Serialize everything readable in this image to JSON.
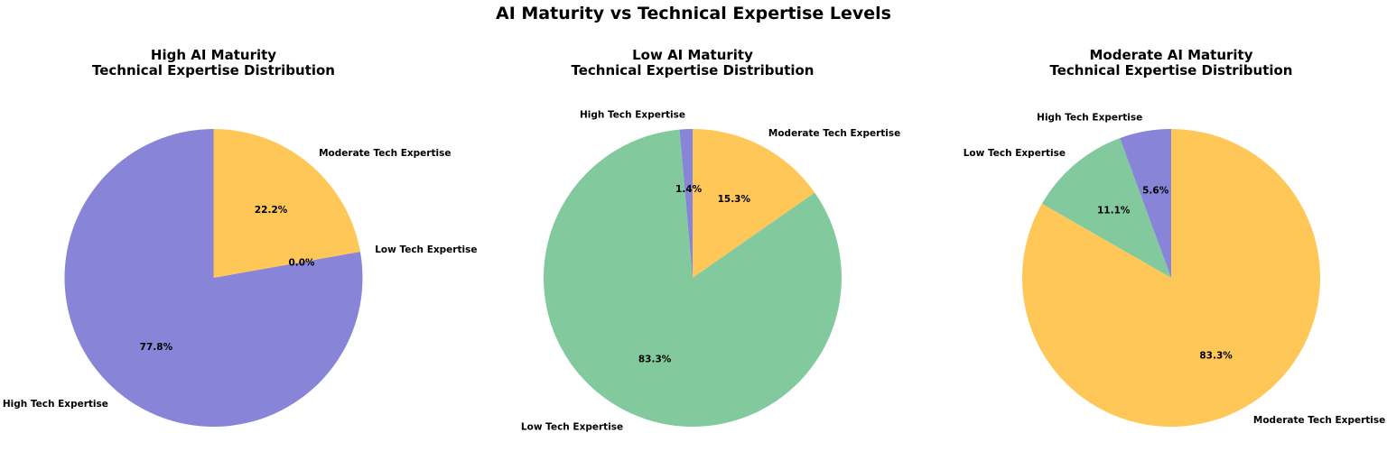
{
  "title": "AI Maturity vs Technical Expertise Levels",
  "colors": {
    "High Tech Expertise": "#8884d8",
    "Moderate Tech Expertise": "#ffc658",
    "Low Tech Expertise": "#82ca9d"
  },
  "chart_data": [
    {
      "type": "pie",
      "title": "High AI Maturity\nTechnical Expertise Distribution",
      "start_angle_deg": 90,
      "direction": "clockwise",
      "slices": [
        {
          "label": "Moderate Tech Expertise",
          "value": 22.2,
          "pct_label": "22.2%"
        },
        {
          "label": "Low Tech Expertise",
          "value": 0.0,
          "pct_label": "0.0%"
        },
        {
          "label": "High Tech Expertise",
          "value": 77.8,
          "pct_label": "77.8%"
        }
      ]
    },
    {
      "type": "pie",
      "title": "Low AI Maturity\nTechnical Expertise Distribution",
      "start_angle_deg": 90,
      "direction": "clockwise",
      "slices": [
        {
          "label": "Moderate Tech Expertise",
          "value": 15.3,
          "pct_label": "15.3%"
        },
        {
          "label": "Low Tech Expertise",
          "value": 83.3,
          "pct_label": "83.3%"
        },
        {
          "label": "High Tech Expertise",
          "value": 1.4,
          "pct_label": "1.4%"
        }
      ]
    },
    {
      "type": "pie",
      "title": "Moderate AI Maturity\nTechnical Expertise Distribution",
      "start_angle_deg": 90,
      "direction": "clockwise",
      "slices": [
        {
          "label": "Moderate Tech Expertise",
          "value": 83.3,
          "pct_label": "83.3%"
        },
        {
          "label": "Low Tech Expertise",
          "value": 11.1,
          "pct_label": "11.1%"
        },
        {
          "label": "High Tech Expertise",
          "value": 5.6,
          "pct_label": "5.6%"
        }
      ]
    }
  ]
}
